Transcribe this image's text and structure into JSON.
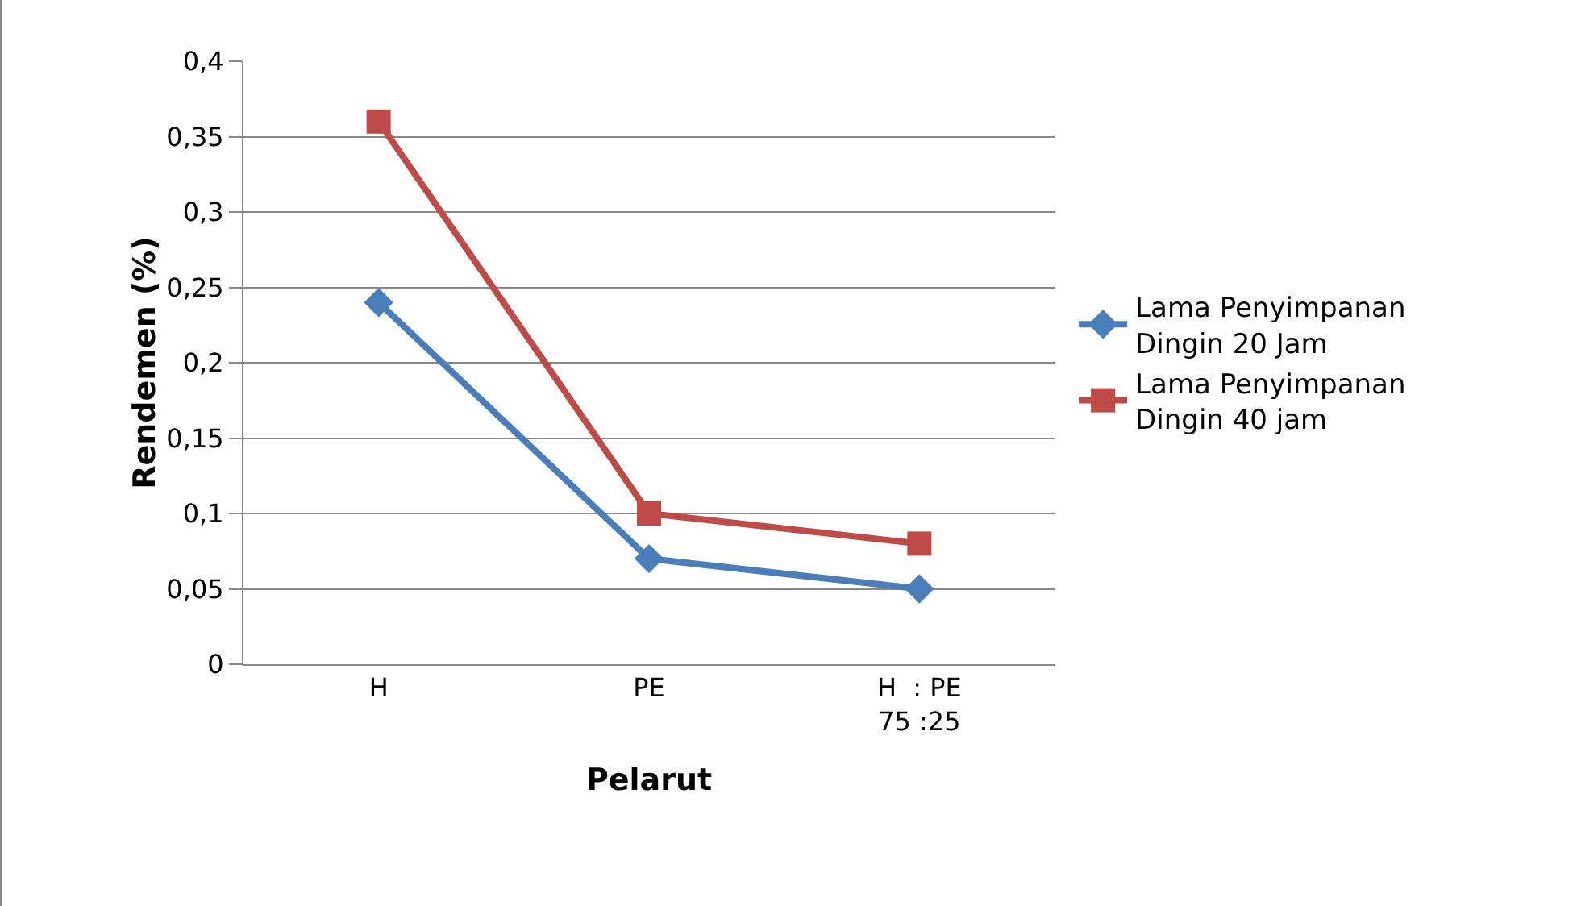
{
  "chart_data": {
    "type": "line",
    "xlabel": "Pelarut",
    "ylabel": "Rendemen (%)",
    "categories": [
      "H",
      "PE",
      "H  : PE\n75 :25"
    ],
    "series": [
      {
        "name": "Lama Penyimpanan\nDingin 20 Jam",
        "color": "#4a7ebb",
        "marker": "diamond",
        "values": [
          0.24,
          0.07,
          0.05
        ]
      },
      {
        "name": "Lama Penyimpanan\nDingin 40 jam",
        "color": "#be4b48",
        "marker": "square",
        "values": [
          0.36,
          0.1,
          0.08
        ]
      }
    ],
    "ylim": [
      0,
      0.4
    ],
    "yticks": [
      {
        "value": 0,
        "label": "0"
      },
      {
        "value": 0.05,
        "label": "0,05"
      },
      {
        "value": 0.1,
        "label": "0,1"
      },
      {
        "value": 0.15,
        "label": "0,15"
      },
      {
        "value": 0.2,
        "label": "0,2"
      },
      {
        "value": 0.25,
        "label": "0,25"
      },
      {
        "value": 0.3,
        "label": "0,3"
      },
      {
        "value": 0.35,
        "label": "0,35"
      },
      {
        "value": 0.4,
        "label": "0,4"
      }
    ],
    "grid": "y",
    "legend": "right",
    "line_style": "solid"
  }
}
